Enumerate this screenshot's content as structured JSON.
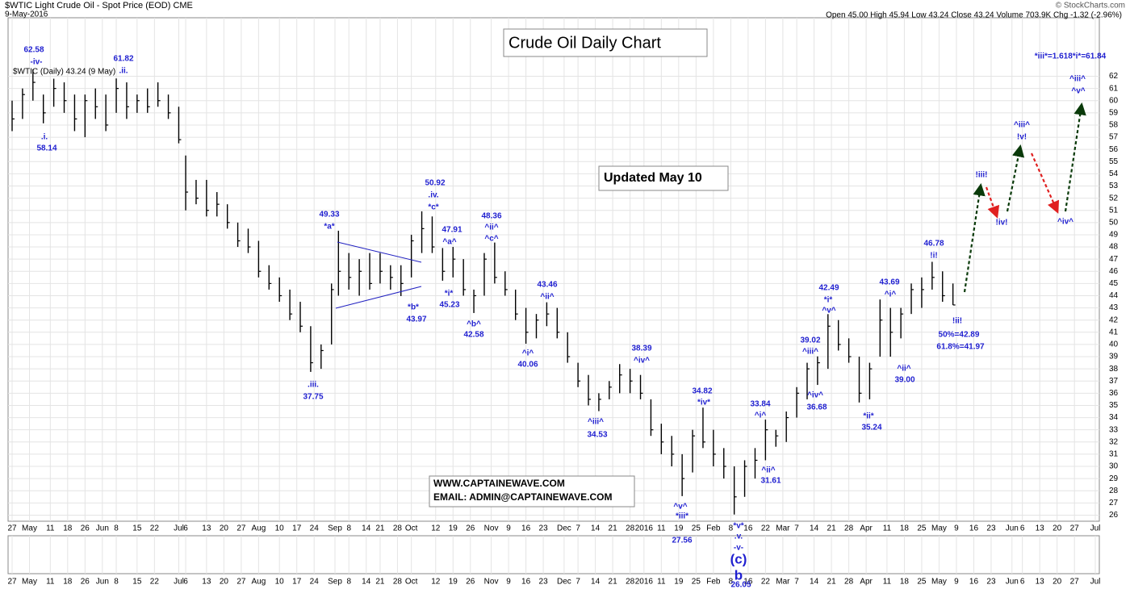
{
  "chart_data": {
    "type": "ohlc",
    "title": "Crude Oil Daily Chart",
    "symbol_title": "$WTIC Light Crude Oil - Spot Price (EOD) CME",
    "date": "9-May-2016",
    "credit": "© StockCharts.com",
    "quote": "Open 45.00 High 45.94 Low 43.24 Close 43.24 Volume 703.9K Chg -1.32 (-2.96%)",
    "legend": "$WTIC (Daily) 43.24 (9 May)",
    "update_note": "Updated May 10",
    "contact": [
      "WWW.CAPTAINEWAVE.COM",
      "EMAIL: ADMIN@CAPTAINEWAVE.COM"
    ],
    "grid": true,
    "color": "#000000",
    "annotation_color": "#1f1fd0",
    "annotations": [
      "62.58",
      "-iv-",
      "61.82",
      ".ii.",
      ".i.",
      "58.14",
      "49.33",
      "*a*",
      ".iii.",
      "37.75",
      "*b*",
      "43.97",
      "50.92",
      ".iv.",
      "*c*",
      "47.91",
      "^a^",
      "*i*",
      "45.23",
      "48.36",
      "^ii^",
      "^c^",
      "^b^",
      "42.58",
      "43.46",
      "^ii^",
      "^i^",
      "40.06",
      "38.39",
      "^iv^",
      "^iii^",
      "34.53",
      "34.82",
      "*iv*",
      "33.84",
      "^i^",
      "^ii^",
      "31.61",
      "^v^",
      "*iii*",
      "27.56",
      "*v*",
      ".v.",
      "-v-",
      "(c)",
      "b",
      "26.05",
      "39.02",
      "^iii^",
      "^iv^",
      "36.68",
      "42.49",
      "*i*",
      "^v^",
      "43.69",
      "^i^",
      "*ii*",
      "35.24",
      "^ii^",
      "39.00",
      "46.78",
      "!i!",
      "!ii!",
      "50%=42.89",
      "61.8%=41.97",
      "!iii!",
      "!iv!",
      "^iii^",
      "!v!",
      "^iv^",
      "^iii^",
      "^v^",
      "*iii*=1.618*i*=61.84"
    ],
    "xlim": [
      0,
      312
    ],
    "xticks": [
      {
        "value": 0,
        "label": "27"
      },
      {
        "value": 5,
        "label": "May"
      },
      {
        "value": 11,
        "label": "11"
      },
      {
        "value": 16,
        "label": "18"
      },
      {
        "value": 21,
        "label": "26"
      },
      {
        "value": 26,
        "label": "Jun"
      },
      {
        "value": 30,
        "label": "8"
      },
      {
        "value": 36,
        "label": "15"
      },
      {
        "value": 41,
        "label": "22"
      },
      {
        "value": 48,
        "label": "Jul"
      },
      {
        "value": 50,
        "label": "6"
      },
      {
        "value": 56,
        "label": "13"
      },
      {
        "value": 61,
        "label": "20"
      },
      {
        "value": 66,
        "label": "27"
      },
      {
        "value": 71,
        "label": "Aug"
      },
      {
        "value": 77,
        "label": "10"
      },
      {
        "value": 82,
        "label": "17"
      },
      {
        "value": 87,
        "label": "24"
      },
      {
        "value": 93,
        "label": "Sep"
      },
      {
        "value": 97,
        "label": "8"
      },
      {
        "value": 102,
        "label": "14"
      },
      {
        "value": 106,
        "label": "21"
      },
      {
        "value": 111,
        "label": "28"
      },
      {
        "value": 115,
        "label": "Oct"
      },
      {
        "value": 122,
        "label": "12"
      },
      {
        "value": 127,
        "label": "19"
      },
      {
        "value": 132,
        "label": "26"
      },
      {
        "value": 138,
        "label": "Nov"
      },
      {
        "value": 143,
        "label": "9"
      },
      {
        "value": 148,
        "label": "16"
      },
      {
        "value": 153,
        "label": "23"
      },
      {
        "value": 159,
        "label": "Dec"
      },
      {
        "value": 163,
        "label": "7"
      },
      {
        "value": 168,
        "label": "14"
      },
      {
        "value": 173,
        "label": "21"
      },
      {
        "value": 178,
        "label": "28"
      },
      {
        "value": 182,
        "label": "2016"
      },
      {
        "value": 187,
        "label": "11"
      },
      {
        "value": 192,
        "label": "19"
      },
      {
        "value": 197,
        "label": "25"
      },
      {
        "value": 202,
        "label": "Feb"
      },
      {
        "value": 207,
        "label": "8"
      },
      {
        "value": 212,
        "label": "16"
      },
      {
        "value": 217,
        "label": "22"
      },
      {
        "value": 222,
        "label": "Mar"
      },
      {
        "value": 226,
        "label": "7"
      },
      {
        "value": 231,
        "label": "14"
      },
      {
        "value": 236,
        "label": "21"
      },
      {
        "value": 241,
        "label": "28"
      },
      {
        "value": 246,
        "label": "Apr"
      },
      {
        "value": 252,
        "label": "11"
      },
      {
        "value": 257,
        "label": "18"
      },
      {
        "value": 262,
        "label": "25"
      },
      {
        "value": 267,
        "label": "May"
      },
      {
        "value": 272,
        "label": "9"
      },
      {
        "value": 277,
        "label": "16"
      },
      {
        "value": 282,
        "label": "23"
      },
      {
        "value": 288,
        "label": "Jun"
      },
      {
        "value": 291,
        "label": "6"
      },
      {
        "value": 296,
        "label": "13"
      },
      {
        "value": 301,
        "label": "20"
      },
      {
        "value": 306,
        "label": "27"
      },
      {
        "value": 312,
        "label": "Jul"
      }
    ],
    "ylim": [
      25.5,
      66.8
    ],
    "yticks": [
      26,
      27,
      28,
      29,
      30,
      31,
      32,
      33,
      34,
      35,
      36,
      37,
      38,
      39,
      40,
      41,
      42,
      43,
      44,
      45,
      46,
      47,
      48,
      49,
      50,
      51,
      52,
      53,
      54,
      55,
      56,
      57,
      58,
      59,
      60,
      61,
      62
    ],
    "series": [
      {
        "x": [
          0,
          3,
          6,
          9,
          12,
          15,
          18,
          21,
          24,
          27,
          30,
          33,
          36,
          39,
          42,
          45,
          48,
          50,
          53,
          56,
          59,
          62,
          65,
          68,
          71,
          74,
          77,
          80,
          83,
          86,
          89,
          92,
          94,
          97,
          100,
          103,
          106,
          109,
          112,
          115,
          118,
          121,
          124,
          127,
          130,
          133,
          136,
          139,
          142,
          145,
          148,
          151,
          154,
          157,
          160,
          163,
          166,
          169,
          172,
          175,
          178,
          181,
          184,
          187,
          190,
          193,
          196,
          199,
          202,
          205,
          208,
          211,
          214,
          217,
          220,
          223,
          226,
          229,
          232,
          235,
          238,
          241,
          244,
          247,
          250,
          253,
          256,
          259,
          262,
          265,
          268,
          271
        ],
        "high": [
          60.0,
          61.0,
          62.58,
          60.5,
          61.8,
          61.5,
          60.5,
          60.5,
          61.0,
          60.5,
          61.82,
          61.5,
          60.5,
          61.0,
          61.5,
          60.5,
          59.5,
          55.5,
          53.5,
          53.5,
          52.5,
          51.5,
          50.0,
          49.5,
          48.5,
          46.5,
          45.5,
          44.5,
          43.5,
          41.5,
          40.0,
          45.0,
          49.33,
          47.5,
          47.0,
          47.5,
          47.5,
          46.5,
          46.5,
          49.0,
          50.92,
          50.5,
          47.91,
          48.0,
          47.0,
          44.5,
          47.5,
          48.36,
          46.0,
          44.5,
          43.0,
          42.5,
          43.46,
          43.0,
          41.0,
          38.5,
          37.5,
          36.0,
          37.0,
          38.39,
          38.0,
          37.5,
          35.5,
          33.5,
          32.5,
          31.0,
          33.0,
          34.82,
          33.0,
          31.5,
          30.0,
          30.5,
          31.5,
          33.84,
          33.0,
          34.5,
          36.5,
          38.5,
          39.02,
          42.49,
          42.0,
          40.5,
          39.0,
          38.5,
          43.69,
          43.0,
          43.0,
          45.0,
          45.5,
          46.78,
          46.0,
          45.0
        ],
        "low": [
          57.5,
          58.5,
          60.0,
          58.14,
          59.5,
          59.0,
          57.5,
          57.0,
          58.5,
          57.5,
          59.0,
          58.5,
          59.0,
          59.0,
          59.5,
          58.5,
          56.5,
          51.0,
          51.5,
          50.5,
          50.5,
          49.5,
          48.0,
          47.5,
          45.5,
          44.5,
          43.5,
          42.0,
          41.0,
          37.75,
          38.0,
          40.0,
          44.0,
          44.5,
          44.0,
          44.5,
          45.0,
          44.5,
          43.97,
          45.5,
          47.5,
          47.5,
          45.23,
          45.5,
          44.0,
          42.58,
          44.0,
          45.0,
          44.0,
          42.0,
          40.06,
          40.5,
          41.5,
          40.5,
          38.5,
          36.5,
          35.0,
          34.53,
          35.5,
          36.0,
          36.0,
          35.5,
          32.5,
          31.0,
          30.0,
          27.56,
          29.5,
          31.5,
          30.0,
          29.0,
          26.05,
          27.5,
          29.0,
          30.5,
          31.61,
          32.0,
          34.0,
          35.5,
          36.68,
          38.0,
          39.5,
          38.5,
          35.24,
          35.5,
          39.0,
          39.0,
          40.5,
          42.5,
          43.0,
          44.5,
          43.5,
          43.24
        ],
        "close": [
          58.5,
          60.5,
          61.5,
          59.0,
          61.0,
          60.0,
          58.5,
          60.0,
          59.5,
          58.0,
          61.0,
          59.5,
          60.0,
          59.5,
          60.0,
          59.0,
          56.8,
          52.5,
          52.0,
          51.0,
          51.5,
          50.0,
          48.5,
          48.0,
          46.0,
          45.0,
          44.0,
          42.5,
          41.5,
          38.5,
          39.5,
          44.5,
          46.0,
          45.5,
          46.0,
          45.0,
          46.0,
          45.5,
          45.0,
          48.5,
          49.5,
          48.0,
          46.0,
          47.0,
          44.5,
          44.0,
          47.0,
          45.5,
          44.5,
          42.5,
          41.0,
          42.0,
          42.5,
          41.0,
          39.0,
          37.0,
          35.5,
          35.5,
          36.5,
          37.5,
          37.0,
          36.0,
          33.0,
          32.0,
          31.0,
          29.0,
          32.5,
          32.0,
          31.0,
          30.0,
          27.5,
          30.0,
          30.5,
          33.0,
          32.5,
          34.0,
          36.0,
          38.0,
          38.5,
          41.5,
          40.0,
          39.0,
          36.0,
          38.0,
          42.0,
          41.0,
          42.5,
          44.5,
          44.5,
          45.5,
          44.0,
          43.24
        ]
      }
    ]
  }
}
